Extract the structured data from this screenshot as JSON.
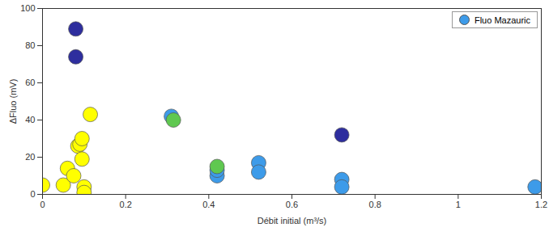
{
  "chart_data": {
    "type": "scatter",
    "x_label": "Débit initial (m³/s)",
    "y_label": "ΔFluo (mV)",
    "xlim": [
      0,
      1.2
    ],
    "xticks": [
      0,
      0.2,
      0.4,
      0.6,
      0.8,
      1,
      1.2
    ],
    "ylim": [
      0,
      100
    ],
    "yticks": [
      0,
      20,
      40,
      60,
      80,
      100
    ],
    "grid": false,
    "legend": "upper right",
    "marker": "circle",
    "x": [
      0.08,
      0.08,
      0.72,
      0.31,
      0.42,
      0.42,
      0.52,
      0.52,
      0.72,
      0.72,
      1.185,
      0.315,
      0.42,
      0,
      0.05,
      0.06,
      0.075,
      0.085,
      0.09,
      0.095,
      0.095,
      0.1,
      0.1,
      0.115
    ],
    "series": [
      {
        "name": "Fluo Mazauric",
        "color": "#3d9be9",
        "values": [
          89,
          74,
          32,
          42,
          10,
          13,
          17,
          12,
          8,
          4,
          4,
          40,
          15,
          5,
          5,
          14,
          10,
          26,
          27,
          30,
          19,
          4,
          1,
          43
        ],
        "colors": [
          "#2e2e9e",
          "#2e2e9e",
          "#2e2e9e",
          "#3d9be9",
          "#3d9be9",
          "#3d9be9",
          "#3d9be9",
          "#3d9be9",
          "#3d9be9",
          "#3d9be9",
          "#3d9be9",
          "#5fc850",
          "#5fc850",
          "#ffff00",
          "#ffff00",
          "#ffff00",
          "#ffff00",
          "#ffff00",
          "#ffff00",
          "#ffff00",
          "#ffff00",
          "#ffff00",
          "#ffff00",
          "#ffff00"
        ]
      }
    ]
  }
}
